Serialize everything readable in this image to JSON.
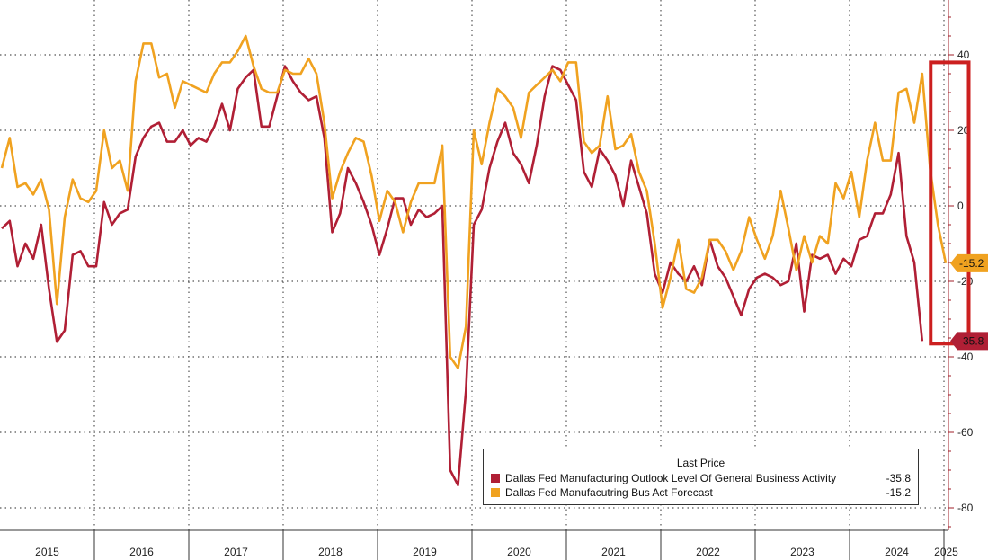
{
  "chart_data": {
    "type": "line",
    "title": "",
    "xlabel": "",
    "ylabel": "",
    "ylim": [
      -85,
      55
    ],
    "y_ticks": [
      40,
      20,
      0,
      -20,
      -40,
      -60,
      -80
    ],
    "y_tick_labels": [
      "40",
      "20",
      "0",
      "-20",
      "-40",
      "-60",
      "-80"
    ],
    "grid": true,
    "x_tick_labels": [
      "2015",
      "2016",
      "2017",
      "2018",
      "2019",
      "2020",
      "2021",
      "2022",
      "2023",
      "2024",
      "2025"
    ],
    "legend": {
      "placement": "bottom-right",
      "title": "Last Price"
    },
    "highlight_box": {
      "from": "2024-12",
      "to": "2025-03",
      "y_from": -36.5,
      "y_to": 38,
      "color": "#cc1f1f"
    },
    "series": [
      {
        "name": "Dallas Fed Manufacturing Outlook Level Of General Business Activity",
        "color": "#b01f35",
        "last_value": -35.8,
        "last_label": "-35.8",
        "points": [
          [
            "2015-01",
            -6
          ],
          [
            "2015-02",
            -4
          ],
          [
            "2015-03",
            -16
          ],
          [
            "2015-04",
            -10
          ],
          [
            "2015-05",
            -14
          ],
          [
            "2015-06",
            -5
          ],
          [
            "2015-07",
            -22
          ],
          [
            "2015-08",
            -36
          ],
          [
            "2015-09",
            -33
          ],
          [
            "2015-10",
            -13
          ],
          [
            "2015-11",
            -12
          ],
          [
            "2015-12",
            -16
          ],
          [
            "2016-01",
            -16
          ],
          [
            "2016-02",
            1
          ],
          [
            "2016-03",
            -5
          ],
          [
            "2016-04",
            -2
          ],
          [
            "2016-05",
            -1
          ],
          [
            "2016-06",
            13
          ],
          [
            "2016-07",
            18
          ],
          [
            "2016-08",
            21
          ],
          [
            "2016-09",
            22
          ],
          [
            "2016-10",
            17
          ],
          [
            "2016-11",
            17
          ],
          [
            "2016-12",
            20
          ],
          [
            "2017-01",
            16
          ],
          [
            "2017-02",
            18
          ],
          [
            "2017-03",
            17
          ],
          [
            "2017-04",
            21
          ],
          [
            "2017-05",
            27
          ],
          [
            "2017-06",
            20
          ],
          [
            "2017-07",
            31
          ],
          [
            "2017-08",
            34
          ],
          [
            "2017-09",
            36
          ],
          [
            "2017-10",
            21
          ],
          [
            "2017-11",
            21
          ],
          [
            "2017-12",
            29
          ],
          [
            "2018-01",
            37
          ],
          [
            "2018-02",
            33
          ],
          [
            "2018-03",
            30
          ],
          [
            "2018-04",
            28
          ],
          [
            "2018-05",
            29
          ],
          [
            "2018-06",
            18
          ],
          [
            "2018-07",
            -7
          ],
          [
            "2018-08",
            -2
          ],
          [
            "2018-09",
            10
          ],
          [
            "2018-10",
            6
          ],
          [
            "2018-11",
            1
          ],
          [
            "2018-12",
            -5
          ],
          [
            "2019-01",
            -13
          ],
          [
            "2019-02",
            -6
          ],
          [
            "2019-03",
            2
          ],
          [
            "2019-04",
            2
          ],
          [
            "2019-05",
            -5
          ],
          [
            "2019-06",
            -1
          ],
          [
            "2019-07",
            -3
          ],
          [
            "2019-08",
            -2
          ],
          [
            "2019-09",
            0
          ],
          [
            "2019-10",
            -70
          ],
          [
            "2019-11",
            -74
          ],
          [
            "2019-12",
            -49
          ],
          [
            "2020-01",
            -5
          ],
          [
            "2020-02",
            -1
          ],
          [
            "2020-03",
            10
          ],
          [
            "2020-04",
            17
          ],
          [
            "2020-05",
            22
          ],
          [
            "2020-06",
            14
          ],
          [
            "2020-07",
            11
          ],
          [
            "2020-08",
            6
          ],
          [
            "2020-09",
            16
          ],
          [
            "2020-10",
            29
          ],
          [
            "2020-11",
            37
          ],
          [
            "2020-12",
            36
          ],
          [
            "2021-01",
            32
          ],
          [
            "2021-02",
            28
          ],
          [
            "2021-03",
            9
          ],
          [
            "2021-04",
            5
          ],
          [
            "2021-05",
            15
          ],
          [
            "2021-06",
            12
          ],
          [
            "2021-07",
            8
          ],
          [
            "2021-08",
            0
          ],
          [
            "2021-09",
            12
          ],
          [
            "2021-10",
            5
          ],
          [
            "2021-11",
            -2
          ],
          [
            "2021-12",
            -18
          ],
          [
            "2022-01",
            -23
          ],
          [
            "2022-02",
            -15
          ],
          [
            "2022-03",
            -18
          ],
          [
            "2022-04",
            -20
          ],
          [
            "2022-05",
            -16
          ],
          [
            "2022-06",
            -21
          ],
          [
            "2022-07",
            -9
          ],
          [
            "2022-08",
            -16
          ],
          [
            "2022-09",
            -19
          ],
          [
            "2022-10",
            -24
          ],
          [
            "2022-11",
            -29
          ],
          [
            "2022-12",
            -22
          ],
          [
            "2023-01",
            -19
          ],
          [
            "2023-02",
            -18
          ],
          [
            "2023-03",
            -19
          ],
          [
            "2023-04",
            -21
          ],
          [
            "2023-05",
            -20
          ],
          [
            "2023-06",
            -10
          ],
          [
            "2023-07",
            -28
          ],
          [
            "2023-08",
            -13
          ],
          [
            "2023-09",
            -14
          ],
          [
            "2023-10",
            -13
          ],
          [
            "2023-11",
            -18
          ],
          [
            "2023-12",
            -14
          ],
          [
            "2024-01",
            -16
          ],
          [
            "2024-02",
            -9
          ],
          [
            "2024-03",
            -8
          ],
          [
            "2024-04",
            -2
          ],
          [
            "2024-05",
            -2
          ],
          [
            "2024-06",
            3
          ],
          [
            "2024-07",
            14
          ],
          [
            "2024-08",
            -8
          ],
          [
            "2024-09",
            -15
          ],
          [
            "2024-10",
            -35.8
          ]
        ]
      },
      {
        "name": "Dallas Fed Manufacutring Bus Act Forecast",
        "color": "#f0a220",
        "last_value": -15.2,
        "last_label": "-15.2",
        "points": [
          [
            "2015-01",
            10
          ],
          [
            "2015-02",
            18
          ],
          [
            "2015-03",
            5
          ],
          [
            "2015-04",
            6
          ],
          [
            "2015-05",
            3
          ],
          [
            "2015-06",
            7
          ],
          [
            "2015-07",
            -1
          ],
          [
            "2015-08",
            -26
          ],
          [
            "2015-09",
            -3
          ],
          [
            "2015-10",
            7
          ],
          [
            "2015-11",
            2
          ],
          [
            "2015-12",
            1
          ],
          [
            "2016-01",
            4
          ],
          [
            "2016-02",
            20
          ],
          [
            "2016-03",
            10
          ],
          [
            "2016-04",
            12
          ],
          [
            "2016-05",
            4
          ],
          [
            "2016-06",
            33
          ],
          [
            "2016-07",
            43
          ],
          [
            "2016-08",
            43
          ],
          [
            "2016-09",
            34
          ],
          [
            "2016-10",
            35
          ],
          [
            "2016-11",
            26
          ],
          [
            "2016-12",
            33
          ],
          [
            "2017-01",
            32
          ],
          [
            "2017-02",
            31
          ],
          [
            "2017-03",
            30
          ],
          [
            "2017-04",
            35
          ],
          [
            "2017-05",
            38
          ],
          [
            "2017-06",
            38
          ],
          [
            "2017-07",
            41
          ],
          [
            "2017-08",
            45
          ],
          [
            "2017-09",
            37
          ],
          [
            "2017-10",
            31
          ],
          [
            "2017-11",
            30
          ],
          [
            "2017-12",
            30
          ],
          [
            "2018-01",
            36
          ],
          [
            "2018-02",
            35
          ],
          [
            "2018-03",
            35
          ],
          [
            "2018-04",
            39
          ],
          [
            "2018-05",
            35
          ],
          [
            "2018-06",
            22
          ],
          [
            "2018-07",
            2
          ],
          [
            "2018-08",
            9
          ],
          [
            "2018-09",
            14
          ],
          [
            "2018-10",
            18
          ],
          [
            "2018-11",
            17
          ],
          [
            "2018-12",
            8
          ],
          [
            "2019-01",
            -4
          ],
          [
            "2019-02",
            4
          ],
          [
            "2019-03",
            1
          ],
          [
            "2019-04",
            -7
          ],
          [
            "2019-05",
            1
          ],
          [
            "2019-06",
            6
          ],
          [
            "2019-07",
            6
          ],
          [
            "2019-08",
            6
          ],
          [
            "2019-09",
            16
          ],
          [
            "2019-10",
            -40
          ],
          [
            "2019-11",
            -43
          ],
          [
            "2019-12",
            -32
          ],
          [
            "2020-01",
            20
          ],
          [
            "2020-02",
            11
          ],
          [
            "2020-03",
            22
          ],
          [
            "2020-04",
            31
          ],
          [
            "2020-05",
            29
          ],
          [
            "2020-06",
            26
          ],
          [
            "2020-07",
            18
          ],
          [
            "2020-08",
            30
          ],
          [
            "2020-09",
            32
          ],
          [
            "2020-10",
            34
          ],
          [
            "2020-11",
            36
          ],
          [
            "2020-12",
            33
          ],
          [
            "2021-01",
            38
          ],
          [
            "2021-02",
            38
          ],
          [
            "2021-03",
            17
          ],
          [
            "2021-04",
            14
          ],
          [
            "2021-05",
            16
          ],
          [
            "2021-06",
            29
          ],
          [
            "2021-07",
            15
          ],
          [
            "2021-08",
            16
          ],
          [
            "2021-09",
            19
          ],
          [
            "2021-10",
            9
          ],
          [
            "2021-11",
            4
          ],
          [
            "2021-12",
            -10
          ],
          [
            "2022-01",
            -27
          ],
          [
            "2022-02",
            -19
          ],
          [
            "2022-03",
            -9
          ],
          [
            "2022-04",
            -22
          ],
          [
            "2022-05",
            -23
          ],
          [
            "2022-06",
            -19
          ],
          [
            "2022-07",
            -9
          ],
          [
            "2022-08",
            -9
          ],
          [
            "2022-09",
            -12
          ],
          [
            "2022-10",
            -17
          ],
          [
            "2022-11",
            -12
          ],
          [
            "2022-12",
            -3
          ],
          [
            "2023-01",
            -9
          ],
          [
            "2023-02",
            -14
          ],
          [
            "2023-03",
            -8
          ],
          [
            "2023-04",
            4
          ],
          [
            "2023-05",
            -6
          ],
          [
            "2023-06",
            -17
          ],
          [
            "2023-07",
            -8
          ],
          [
            "2023-08",
            -15
          ],
          [
            "2023-09",
            -8
          ],
          [
            "2023-10",
            -10
          ],
          [
            "2023-11",
            6
          ],
          [
            "2023-12",
            2
          ],
          [
            "2024-01",
            9
          ],
          [
            "2024-02",
            -3
          ],
          [
            "2024-03",
            12
          ],
          [
            "2024-04",
            22
          ],
          [
            "2024-05",
            12
          ],
          [
            "2024-06",
            12
          ],
          [
            "2024-07",
            30
          ],
          [
            "2024-08",
            31
          ],
          [
            "2024-09",
            22
          ],
          [
            "2024-10",
            35
          ],
          [
            "2024-11",
            10
          ],
          [
            "2024-12",
            -5
          ],
          [
            "2025-01",
            -15.2
          ]
        ]
      }
    ]
  }
}
